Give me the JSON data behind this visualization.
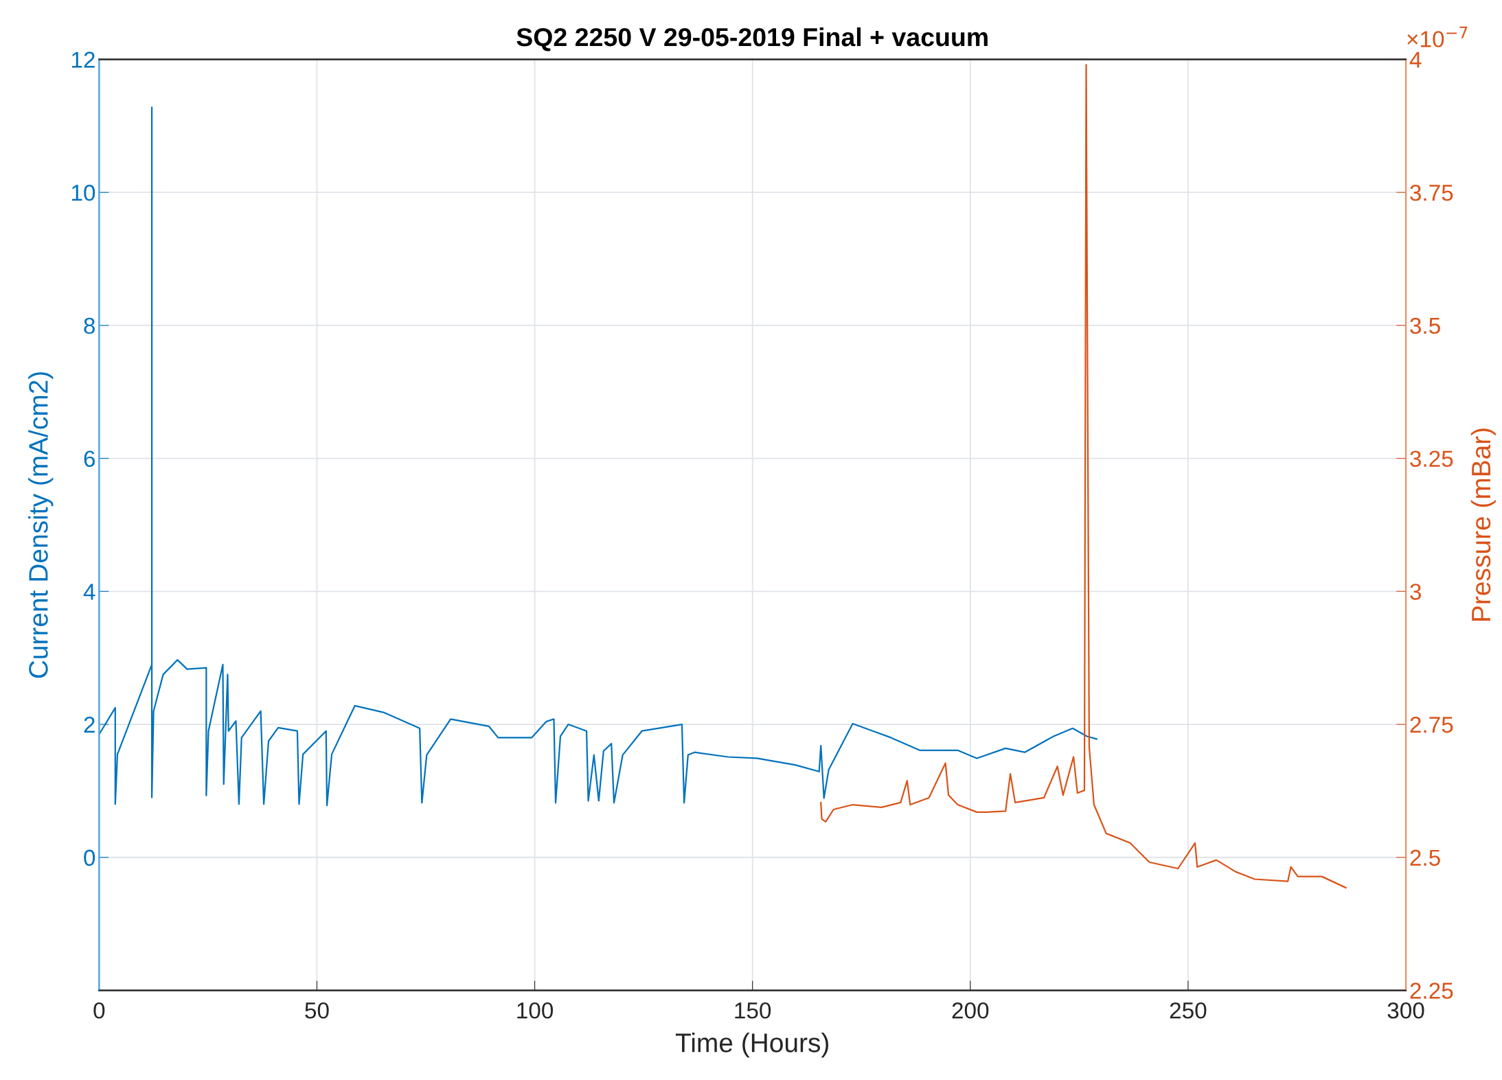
{
  "chart_data": {
    "type": "line",
    "title": "SQ2 2250 V 29-05-2019 Final + vacuum",
    "xlabel": "Time (Hours)",
    "ylabel": "Current Density (mA/cm2)",
    "y2label": "Pressure (mBar)",
    "xlim": [
      0,
      300
    ],
    "xticks": [
      0,
      50,
      100,
      150,
      200,
      250,
      300
    ],
    "ylim": [
      -2,
      12
    ],
    "yticks": [
      0,
      2,
      4,
      6,
      8,
      10,
      12
    ],
    "y2lim": [
      2.25,
      4
    ],
    "y2ticks": [
      2.25,
      2.5,
      2.75,
      3,
      3.25,
      3.5,
      3.75,
      4
    ],
    "grid": true,
    "legend": false,
    "marker": "none",
    "line_style": "solid",
    "annotations": [
      "×10$^{−7}$"
    ],
    "series": [
      {
        "color": "#0072bd",
        "x": [
          0,
          3.7,
          3.7,
          4.2,
          12.1,
          12.1,
          12.1,
          12.5,
          14.7,
          18.0,
          20.2,
          24.6,
          24.6,
          25.1,
          28.4,
          28.6,
          29.5,
          29.7,
          31.4,
          32.1,
          32.7,
          37.1,
          37.8,
          38.9,
          41.1,
          45.5,
          45.9,
          46.8,
          52.1,
          52.3,
          53.4,
          58.7,
          65.3,
          73.6,
          74.1,
          75.2,
          80.7,
          89.5,
          91.6,
          99.3,
          102.6,
          104.4,
          104.8,
          105.9,
          107.7,
          111.9,
          112.3,
          113.6,
          114.7,
          115.8,
          117.6,
          118.2,
          120.2,
          124.6,
          133.8,
          134.3,
          135.2,
          136.7,
          144.4,
          151.0,
          159.8,
          165.3,
          165.7,
          166.4,
          167.5,
          173.0,
          181.8,
          188.4,
          197.1,
          201.5,
          208.1,
          212.5,
          219.1,
          223.5,
          226.8,
          229.0
        ],
        "values": [
          1.85,
          2.25,
          0.8,
          1.55,
          2.9,
          11.28,
          0.9,
          2.2,
          2.75,
          2.97,
          2.83,
          2.85,
          0.93,
          1.9,
          2.9,
          1.1,
          2.75,
          1.9,
          2.05,
          0.8,
          1.8,
          2.2,
          0.8,
          1.75,
          1.95,
          1.9,
          0.8,
          1.55,
          1.9,
          0.78,
          1.55,
          2.28,
          2.18,
          1.94,
          0.82,
          1.54,
          2.08,
          1.97,
          1.8,
          1.8,
          2.04,
          2.08,
          0.82,
          1.82,
          2.0,
          1.9,
          0.85,
          1.54,
          0.85,
          1.6,
          1.71,
          0.82,
          1.54,
          1.9,
          2.0,
          0.82,
          1.54,
          1.58,
          1.51,
          1.49,
          1.39,
          1.29,
          1.68,
          0.89,
          1.32,
          2.01,
          1.8,
          1.61,
          1.61,
          1.49,
          1.64,
          1.58,
          1.82,
          1.94,
          1.82,
          1.78
        ]
      },
      {
        "color": "#d95319",
        "axis": "y2",
        "x": [
          165.7,
          165.9,
          166.8,
          168.6,
          173.0,
          179.6,
          184.0,
          185.5,
          186.2,
          190.5,
          194.3,
          195.0,
          197.1,
          201.5,
          203.7,
          208.1,
          209.2,
          210.3,
          216.9,
          220.0,
          221.3,
          223.7,
          224.6,
          226.2,
          226.6,
          227.3,
          228.4,
          231.2,
          236.7,
          241.1,
          247.7,
          251.6,
          252.1,
          256.5,
          260.9,
          265.3,
          272.9,
          273.6,
          275.2,
          280.7,
          286.2
        ],
        "values": [
          2.603,
          2.572,
          2.567,
          2.59,
          2.599,
          2.594,
          2.603,
          2.644,
          2.599,
          2.612,
          2.677,
          2.617,
          2.599,
          2.585,
          2.585,
          2.587,
          2.657,
          2.603,
          2.612,
          2.671,
          2.617,
          2.689,
          2.621,
          2.626,
          3.99,
          2.707,
          2.599,
          2.545,
          2.527,
          2.491,
          2.479,
          2.527,
          2.482,
          2.495,
          2.473,
          2.459,
          2.455,
          2.482,
          2.464,
          2.464,
          2.443
        ]
      }
    ]
  }
}
